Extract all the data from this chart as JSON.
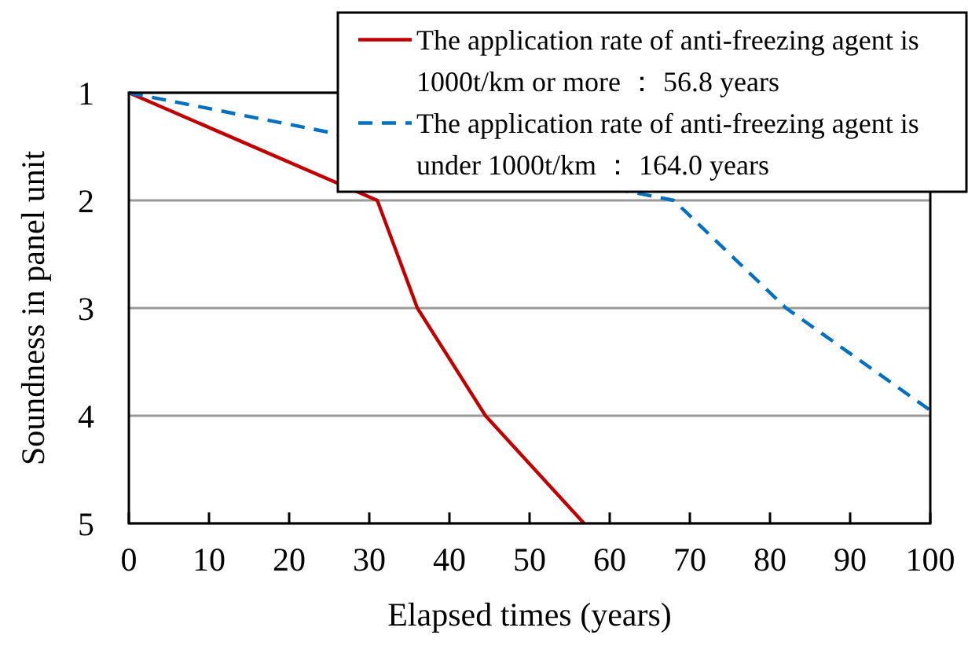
{
  "chart_data": {
    "type": "line",
    "xlabel": "Elapsed times (years)",
    "ylabel": "Soundness in panel unit",
    "xlim": [
      0,
      100
    ],
    "xticks": [
      0,
      10,
      20,
      30,
      40,
      50,
      60,
      70,
      80,
      90,
      100
    ],
    "ylim": [
      5,
      1
    ],
    "yticks": [
      1,
      2,
      3,
      4,
      5
    ],
    "grid": "y",
    "legend": "top right",
    "series": [
      {
        "name": "The application rate of anti-freezing agent is 1000t/km or more ： 56.8 years",
        "color": "#c00000",
        "line_style": "solid",
        "x": [
          0,
          31,
          36,
          44.5,
          56.8
        ],
        "values": [
          1,
          2,
          3,
          4,
          5
        ]
      },
      {
        "name": "The application rate of anti-freezing agent is under 1000t/km ： 164.0 years",
        "color": "#0070c0",
        "line_style": "dashed",
        "x": [
          0,
          68,
          82,
          100
        ],
        "values": [
          1,
          2,
          3,
          3.95
        ]
      }
    ]
  }
}
